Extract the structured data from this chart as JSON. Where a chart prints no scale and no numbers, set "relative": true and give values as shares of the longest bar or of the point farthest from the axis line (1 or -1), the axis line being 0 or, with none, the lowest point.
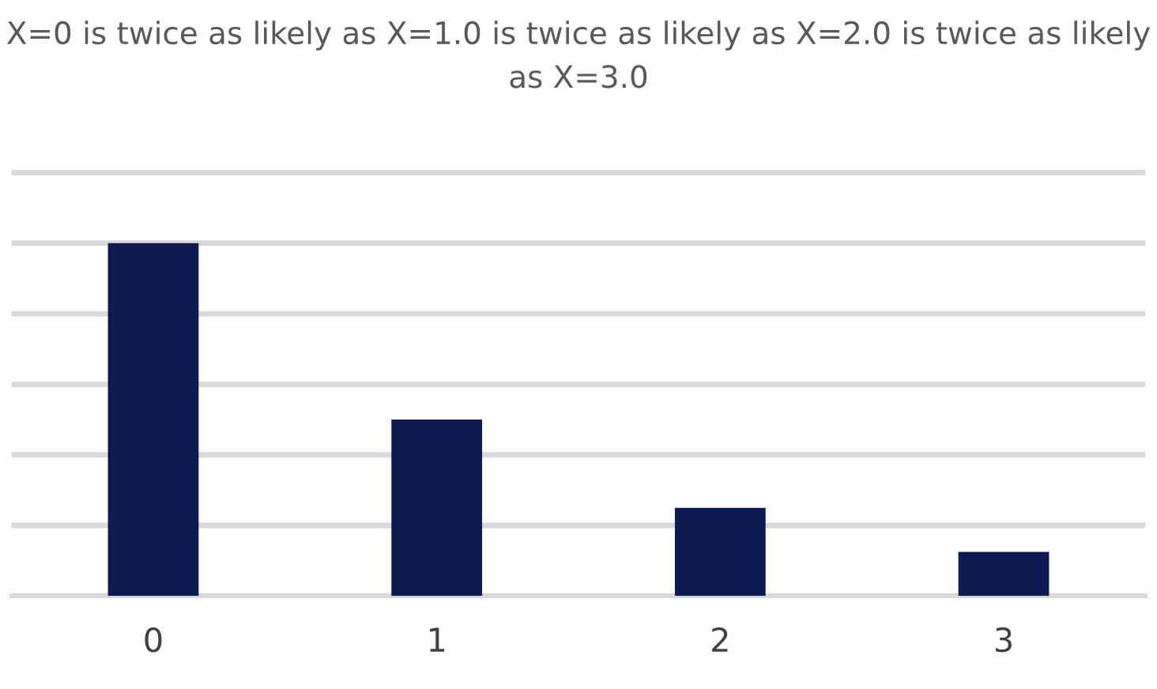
{
  "chart_data": {
    "type": "bar",
    "title": "X=0 is twice as likely as X=1.0 is twice as likely as X=2.0 is twice as likely as X=3.0",
    "categories": [
      "0",
      "1",
      "2",
      "3"
    ],
    "values": [
      1,
      0.5,
      0.25,
      0.125
    ],
    "color": "#0e1a52",
    "relative": true,
    "grid": "y"
  }
}
